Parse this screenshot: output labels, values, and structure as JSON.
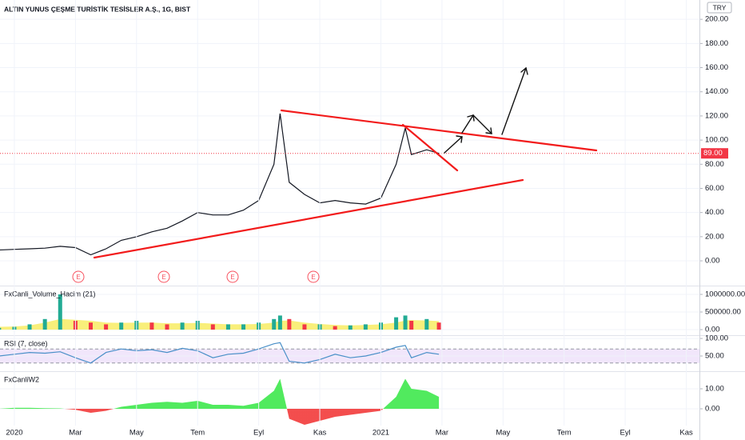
{
  "chart_data": [
    {
      "type": "line",
      "title": "ALTIN YUNUS ÇEŞME TURİSTİK TESİSLER A.Ş., 1G, BIST",
      "currency": "TRY",
      "x": [
        -0.5,
        0,
        0.5,
        1,
        1.5,
        2,
        2.5,
        3,
        3.5,
        4,
        4.5,
        5,
        5.5,
        6,
        6.5,
        7,
        7.5,
        8,
        8.5,
        8.7,
        9,
        9.5,
        10,
        10.5,
        11,
        11.5,
        12,
        12.5,
        12.8,
        13,
        13.5,
        13.9
      ],
      "series": [
        {
          "name": "close",
          "color": "#131722",
          "values": [
            9,
            9.5,
            10,
            10.5,
            12,
            11,
            5,
            10,
            17,
            20,
            24,
            27,
            33,
            40,
            38,
            38,
            42,
            50,
            80,
            122,
            65,
            55,
            48,
            50,
            48,
            47,
            52,
            80,
            110,
            88,
            92,
            89
          ]
        }
      ],
      "last_price": {
        "value": 89,
        "label": "89.00"
      },
      "last_color": "#f23645",
      "ylim": [
        -20.5,
        216
      ],
      "yticks": [
        {
          "value": 0,
          "label": "0.00"
        },
        {
          "value": 20,
          "label": "20.00"
        },
        {
          "value": 40,
          "label": "40.00"
        },
        {
          "value": 60,
          "label": "60.00"
        },
        {
          "value": 80,
          "label": "80.00"
        },
        {
          "value": 100,
          "label": "100.00"
        },
        {
          "value": 120,
          "label": "120.00"
        },
        {
          "value": 140,
          "label": "140.00"
        },
        {
          "value": 160,
          "label": "160.00"
        },
        {
          "value": 180,
          "label": "180.00"
        },
        {
          "value": 200,
          "label": "200.00"
        }
      ],
      "grid": true
    },
    {
      "type": "bar",
      "title": "FxCanli_Volume_Hacim (21)",
      "x": [
        -0.5,
        0,
        0.5,
        1,
        1.5,
        2,
        2.5,
        3,
        3.5,
        4,
        4.5,
        5,
        5.5,
        6,
        6.5,
        7,
        7.5,
        8,
        8.5,
        8.7,
        9,
        9.5,
        10,
        10.5,
        11,
        11.5,
        12,
        12.5,
        12.8,
        13,
        13.5,
        13.9
      ],
      "series": [
        {
          "name": "volume",
          "style": "bar",
          "up_color": "#22ab94",
          "down_color": "#f23645",
          "values": [
            50000,
            80000,
            150000,
            300000,
            1000000,
            250000,
            200000,
            150000,
            200000,
            250000,
            200000,
            150000,
            200000,
            250000,
            150000,
            150000,
            150000,
            200000,
            300000,
            400000,
            300000,
            150000,
            150000,
            100000,
            120000,
            150000,
            200000,
            350000,
            400000,
            250000,
            300000,
            200000
          ]
        },
        {
          "name": "average",
          "style": "area",
          "color": "#f7e94d",
          "values": [
            80000,
            90000,
            120000,
            200000,
            300000,
            280000,
            250000,
            200000,
            190000,
            200000,
            200000,
            180000,
            180000,
            190000,
            170000,
            150000,
            150000,
            160000,
            200000,
            250000,
            260000,
            200000,
            160000,
            130000,
            120000,
            130000,
            150000,
            200000,
            260000,
            270000,
            260000,
            240000
          ]
        }
      ],
      "ylim": [
        -136000,
        1227000
      ],
      "yticks": [
        {
          "value": 0,
          "label": "0.00"
        },
        {
          "value": 500000,
          "label": "500000.00"
        },
        {
          "value": 1000000,
          "label": "1000000.00"
        }
      ],
      "grid": true
    },
    {
      "type": "line",
      "title": "RSI (7, close)",
      "x": [
        -0.5,
        0,
        0.5,
        1,
        1.5,
        2,
        2.5,
        3,
        3.5,
        4,
        4.5,
        5,
        5.5,
        6,
        6.5,
        7,
        7.5,
        8,
        8.5,
        8.7,
        9,
        9.5,
        10,
        10.5,
        11,
        11.5,
        12,
        12.5,
        12.8,
        13,
        13.5,
        13.9
      ],
      "series": [
        {
          "name": "rsi",
          "color": "#4a90c8",
          "values": [
            50,
            55,
            60,
            58,
            62,
            45,
            30,
            60,
            70,
            65,
            68,
            60,
            72,
            65,
            45,
            55,
            58,
            70,
            85,
            88,
            35,
            30,
            40,
            55,
            45,
            50,
            60,
            75,
            80,
            45,
            60,
            55
          ]
        }
      ],
      "band": [
        30,
        70
      ],
      "band_color": "#f1e6fb",
      "ylim": [
        9,
        107
      ],
      "yticks": [
        {
          "value": 50,
          "label": "50.00"
        },
        {
          "value": 100,
          "label": "100.00"
        }
      ],
      "grid": true
    },
    {
      "type": "area",
      "title": "FxCanliW2",
      "x": [
        -0.5,
        0,
        0.5,
        1,
        1.5,
        2,
        2.5,
        3,
        3.5,
        4,
        4.5,
        5,
        5.5,
        6,
        6.5,
        7,
        7.5,
        8,
        8.5,
        8.7,
        9,
        9.5,
        10,
        10.5,
        11,
        11.5,
        12,
        12.5,
        12.8,
        13,
        13.5,
        13.9
      ],
      "series": [
        {
          "name": "w2",
          "up_color": "#3ee84c",
          "down_color": "#f23a3a",
          "values": [
            0,
            0.5,
            0.5,
            0.3,
            0.2,
            -0.5,
            -2,
            -1,
            1,
            2,
            3,
            3.5,
            3,
            4,
            2,
            2,
            1.5,
            3,
            9,
            15,
            -5,
            -8,
            -6,
            -4,
            -3,
            -2,
            -1,
            6,
            15,
            10,
            9,
            6
          ]
        }
      ],
      "ylim": [
        -8.4,
        18.4
      ],
      "yticks": [
        {
          "value": 0,
          "label": "0.00"
        },
        {
          "value": 10,
          "label": "10.00"
        }
      ],
      "grid": true,
      "xlim": [
        -0.47,
        22.43
      ],
      "xticks": [
        {
          "value": 0,
          "label": "2020"
        },
        {
          "value": 2,
          "label": "Mar"
        },
        {
          "value": 4,
          "label": "May"
        },
        {
          "value": 6,
          "label": "Tem"
        },
        {
          "value": 8,
          "label": "Eyl"
        },
        {
          "value": 10,
          "label": "Kas"
        },
        {
          "value": 12,
          "label": "2021"
        },
        {
          "value": 14,
          "label": "Mar"
        },
        {
          "value": 16,
          "label": "May"
        },
        {
          "value": 18,
          "label": "Tem"
        },
        {
          "value": 20,
          "label": "Eyl"
        },
        {
          "value": 22,
          "label": "Kas"
        }
      ]
    }
  ],
  "events": [
    "E",
    "E",
    "E",
    "E"
  ]
}
